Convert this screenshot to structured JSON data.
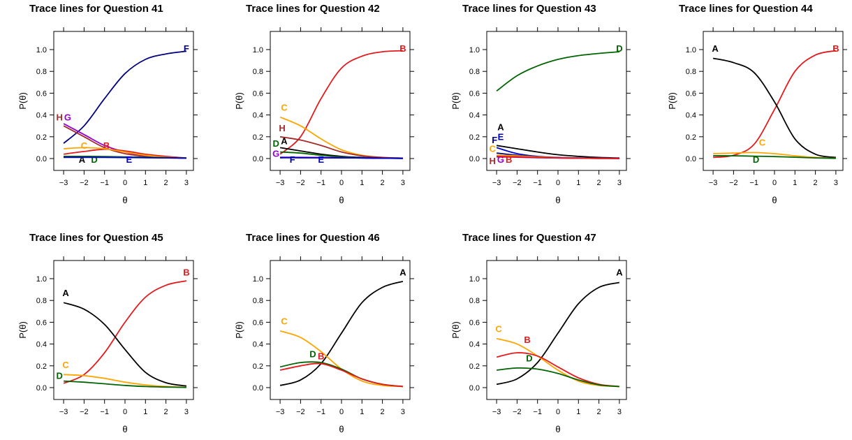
{
  "chart_data": [
    {
      "type": "line",
      "title": "Trace lines for Question 41",
      "xlabel": "θ",
      "ylabel": "P(θ)",
      "xlim": [
        -3,
        3
      ],
      "ylim": [
        0,
        1
      ],
      "xticks": [
        "−3",
        "−2",
        "−1",
        "0",
        "1",
        "2",
        "3"
      ],
      "yticks": [
        "0.0",
        "0.2",
        "0.4",
        "0.6",
        "0.8",
        "1.0"
      ],
      "x": [
        -3,
        -2,
        -1,
        0,
        1,
        2,
        3
      ],
      "series": [
        {
          "name": "F",
          "color": "#000080",
          "values": [
            0.14,
            0.3,
            0.55,
            0.78,
            0.91,
            0.96,
            0.985
          ],
          "label_at": [
            3,
            0.98
          ]
        },
        {
          "name": "G",
          "color": "#9400d3",
          "values": [
            0.32,
            0.22,
            0.12,
            0.06,
            0.025,
            0.01,
            0.005
          ],
          "label_at": [
            -2.8,
            0.35
          ]
        },
        {
          "name": "H",
          "color": "#a52a2a",
          "values": [
            0.3,
            0.2,
            0.1,
            0.045,
            0.02,
            0.008,
            0.003
          ],
          "label_at": [
            -3.2,
            0.35
          ]
        },
        {
          "name": "B",
          "color": "#e31a1c",
          "values": [
            0.04,
            0.065,
            0.085,
            0.07,
            0.04,
            0.02,
            0.005
          ],
          "label_at": [
            -0.9,
            0.09
          ]
        },
        {
          "name": "C",
          "color": "#ffa500",
          "values": [
            0.09,
            0.1,
            0.09,
            0.06,
            0.03,
            0.012,
            0.004
          ],
          "label_at": [
            -2.0,
            0.09
          ]
        },
        {
          "name": "A",
          "color": "#000000",
          "values": [
            0.015,
            0.015,
            0.014,
            0.012,
            0.01,
            0.007,
            0.004
          ],
          "label_at": [
            -2.1,
            -0.04
          ]
        },
        {
          "name": "D",
          "color": "#006400",
          "values": [
            0.02,
            0.02,
            0.018,
            0.015,
            0.012,
            0.008,
            0.005
          ],
          "label_at": [
            -1.5,
            -0.04
          ]
        },
        {
          "name": "E",
          "color": "#0000cd",
          "values": [
            0.01,
            0.01,
            0.01,
            0.009,
            0.008,
            0.006,
            0.004
          ],
          "label_at": [
            0.2,
            -0.04
          ]
        }
      ]
    },
    {
      "type": "line",
      "title": "Trace lines for Question 42",
      "xlabel": "θ",
      "ylabel": "P(θ)",
      "xlim": [
        -3,
        3
      ],
      "ylim": [
        0,
        1
      ],
      "xticks": [
        "−3",
        "−2",
        "−1",
        "0",
        "1",
        "2",
        "3"
      ],
      "yticks": [
        "0.0",
        "0.2",
        "0.4",
        "0.6",
        "0.8",
        "1.0"
      ],
      "x": [
        -3,
        -2,
        -1,
        0,
        1,
        2,
        3
      ],
      "series": [
        {
          "name": "B",
          "color": "#e31a1c",
          "values": [
            0.04,
            0.2,
            0.55,
            0.83,
            0.94,
            0.98,
            0.99
          ],
          "label_at": [
            3,
            0.98
          ]
        },
        {
          "name": "C",
          "color": "#ffa500",
          "values": [
            0.38,
            0.3,
            0.18,
            0.08,
            0.03,
            0.01,
            0.004
          ],
          "label_at": [
            -2.8,
            0.44
          ]
        },
        {
          "name": "H",
          "color": "#a52a2a",
          "values": [
            0.2,
            0.17,
            0.12,
            0.06,
            0.025,
            0.01,
            0.004
          ],
          "label_at": [
            -2.9,
            0.25
          ]
        },
        {
          "name": "A",
          "color": "#000000",
          "values": [
            0.1,
            0.07,
            0.04,
            0.02,
            0.01,
            0.004,
            0.002
          ],
          "label_at": [
            -2.8,
            0.13
          ]
        },
        {
          "name": "D",
          "color": "#006400",
          "values": [
            0.06,
            0.05,
            0.03,
            0.015,
            0.008,
            0.003,
            0.002
          ],
          "label_at": [
            -3.2,
            0.11
          ]
        },
        {
          "name": "G",
          "color": "#9400d3",
          "values": [
            0.012,
            0.011,
            0.01,
            0.008,
            0.006,
            0.004,
            0.002
          ],
          "label_at": [
            -3.2,
            0.015
          ]
        },
        {
          "name": "F",
          "color": "#000080",
          "values": [
            0.008,
            0.008,
            0.007,
            0.006,
            0.005,
            0.003,
            0.002
          ],
          "label_at": [
            -2.4,
            -0.04
          ]
        },
        {
          "name": "E",
          "color": "#0000cd",
          "values": [
            0.008,
            0.008,
            0.007,
            0.006,
            0.005,
            0.003,
            0.002
          ],
          "label_at": [
            -1.0,
            -0.04
          ]
        }
      ]
    },
    {
      "type": "line",
      "title": "Trace lines for Question 43",
      "xlabel": "θ",
      "ylabel": "P(θ)",
      "xlim": [
        -3,
        3
      ],
      "ylim": [
        0,
        1
      ],
      "xticks": [
        "−3",
        "−2",
        "−1",
        "0",
        "1",
        "2",
        "3"
      ],
      "yticks": [
        "0.0",
        "0.2",
        "0.4",
        "0.6",
        "0.8",
        "1.0"
      ],
      "x": [
        -3,
        -2,
        -1,
        0,
        1,
        2,
        3
      ],
      "series": [
        {
          "name": "D",
          "color": "#006400",
          "values": [
            0.62,
            0.76,
            0.85,
            0.91,
            0.945,
            0.965,
            0.98
          ],
          "label_at": [
            3,
            0.98
          ]
        },
        {
          "name": "A",
          "color": "#000000",
          "values": [
            0.12,
            0.09,
            0.06,
            0.035,
            0.02,
            0.01,
            0.005
          ],
          "label_at": [
            -2.8,
            0.26
          ]
        },
        {
          "name": "E",
          "color": "#0000cd",
          "values": [
            0.1,
            0.045,
            0.02,
            0.01,
            0.005,
            0.003,
            0.002
          ],
          "label_at": [
            -2.8,
            0.17
          ]
        },
        {
          "name": "F",
          "color": "#000080",
          "values": [
            0.05,
            0.03,
            0.015,
            0.008,
            0.004,
            0.002,
            0.001
          ],
          "label_at": [
            -3.1,
            0.14
          ]
        },
        {
          "name": "C",
          "color": "#ffa500",
          "values": [
            0.03,
            0.025,
            0.015,
            0.008,
            0.004,
            0.002,
            0.001
          ],
          "label_at": [
            -3.2,
            0.06
          ]
        },
        {
          "name": "H",
          "color": "#a52a2a",
          "values": [
            0.02,
            0.015,
            0.01,
            0.006,
            0.003,
            0.002,
            0.001
          ],
          "label_at": [
            -3.2,
            -0.05
          ]
        },
        {
          "name": "G",
          "color": "#9400d3",
          "values": [
            0.015,
            0.012,
            0.008,
            0.005,
            0.003,
            0.002,
            0.001
          ],
          "label_at": [
            -2.8,
            -0.04
          ]
        },
        {
          "name": "B",
          "color": "#e31a1c",
          "values": [
            0.02,
            0.015,
            0.01,
            0.006,
            0.003,
            0.002,
            0.001
          ],
          "label_at": [
            -2.4,
            -0.04
          ]
        }
      ]
    },
    {
      "type": "line",
      "title": "Trace lines for Question 44",
      "xlabel": "θ",
      "ylabel": "P(θ)",
      "xlim": [
        -3,
        3
      ],
      "ylim": [
        0,
        1
      ],
      "xticks": [
        "−3",
        "−2",
        "−1",
        "0",
        "1",
        "2",
        "3"
      ],
      "yticks": [
        "0.0",
        "0.2",
        "0.4",
        "0.6",
        "0.8",
        "1.0"
      ],
      "x": [
        -3,
        -2,
        -1,
        0,
        1,
        2,
        3
      ],
      "series": [
        {
          "name": "B",
          "color": "#e31a1c",
          "values": [
            0.01,
            0.03,
            0.13,
            0.45,
            0.8,
            0.95,
            0.99
          ],
          "label_at": [
            3,
            0.98
          ]
        },
        {
          "name": "A",
          "color": "#000000",
          "values": [
            0.92,
            0.88,
            0.79,
            0.52,
            0.18,
            0.04,
            0.01
          ],
          "label_at": [
            -2.9,
            0.98
          ]
        },
        {
          "name": "C",
          "color": "#ffa500",
          "values": [
            0.045,
            0.05,
            0.055,
            0.045,
            0.025,
            0.01,
            0.003
          ],
          "label_at": [
            -0.6,
            0.12
          ]
        },
        {
          "name": "D",
          "color": "#006400",
          "values": [
            0.025,
            0.025,
            0.022,
            0.018,
            0.012,
            0.006,
            0.002
          ],
          "label_at": [
            -0.9,
            -0.04
          ]
        }
      ]
    },
    {
      "type": "line",
      "title": "Trace lines for Question 45",
      "xlabel": "θ",
      "ylabel": "P(θ)",
      "xlim": [
        -3,
        3
      ],
      "ylim": [
        0,
        1
      ],
      "xticks": [
        "−3",
        "−2",
        "−1",
        "0",
        "1",
        "2",
        "3"
      ],
      "yticks": [
        "0.0",
        "0.2",
        "0.4",
        "0.6",
        "0.8",
        "1.0"
      ],
      "x": [
        -3,
        -2,
        -1,
        0,
        1,
        2,
        3
      ],
      "series": [
        {
          "name": "B",
          "color": "#e31a1c",
          "values": [
            0.04,
            0.12,
            0.32,
            0.6,
            0.83,
            0.94,
            0.98
          ],
          "label_at": [
            3,
            1.03
          ]
        },
        {
          "name": "A",
          "color": "#000000",
          "values": [
            0.78,
            0.72,
            0.58,
            0.35,
            0.14,
            0.045,
            0.015
          ],
          "label_at": [
            -2.9,
            0.84
          ]
        },
        {
          "name": "C",
          "color": "#ffa500",
          "values": [
            0.12,
            0.11,
            0.085,
            0.05,
            0.025,
            0.01,
            0.004
          ],
          "label_at": [
            -2.9,
            0.18
          ]
        },
        {
          "name": "D",
          "color": "#006400",
          "values": [
            0.06,
            0.05,
            0.035,
            0.02,
            0.01,
            0.005,
            0.002
          ],
          "label_at": [
            -3.2,
            0.08
          ]
        }
      ]
    },
    {
      "type": "line",
      "title": "Trace lines for Question 46",
      "xlabel": "θ",
      "ylabel": "P(θ)",
      "xlim": [
        -3,
        3
      ],
      "ylim": [
        0,
        1
      ],
      "xticks": [
        "−3",
        "−2",
        "−1",
        "0",
        "1",
        "2",
        "3"
      ],
      "yticks": [
        "0.0",
        "0.2",
        "0.4",
        "0.6",
        "0.8",
        "1.0"
      ],
      "x": [
        -3,
        -2,
        -1,
        0,
        1,
        2,
        3
      ],
      "series": [
        {
          "name": "A",
          "color": "#000000",
          "values": [
            0.02,
            0.07,
            0.22,
            0.5,
            0.78,
            0.92,
            0.975
          ],
          "label_at": [
            3,
            1.03
          ]
        },
        {
          "name": "C",
          "color": "#ffa500",
          "values": [
            0.52,
            0.46,
            0.33,
            0.17,
            0.06,
            0.02,
            0.01
          ],
          "label_at": [
            -2.8,
            0.58
          ]
        },
        {
          "name": "D",
          "color": "#006400",
          "values": [
            0.19,
            0.23,
            0.23,
            0.17,
            0.08,
            0.03,
            0.01
          ],
          "label_at": [
            -1.4,
            0.28
          ]
        },
        {
          "name": "B",
          "color": "#e31a1c",
          "values": [
            0.16,
            0.2,
            0.22,
            0.16,
            0.08,
            0.03,
            0.01
          ],
          "label_at": [
            -1.0,
            0.26
          ]
        }
      ]
    },
    {
      "type": "line",
      "title": "Trace lines for Question 47",
      "xlabel": "θ",
      "ylabel": "P(θ)",
      "xlim": [
        -3,
        3
      ],
      "ylim": [
        0,
        1
      ],
      "xticks": [
        "−3",
        "−2",
        "−1",
        "0",
        "1",
        "2",
        "3"
      ],
      "yticks": [
        "0.0",
        "0.2",
        "0.4",
        "0.6",
        "0.8",
        "1.0"
      ],
      "x": [
        -3,
        -2,
        -1,
        0,
        1,
        2,
        3
      ],
      "series": [
        {
          "name": "A",
          "color": "#000000",
          "values": [
            0.03,
            0.08,
            0.23,
            0.5,
            0.77,
            0.92,
            0.965
          ],
          "label_at": [
            3,
            1.03
          ]
        },
        {
          "name": "C",
          "color": "#ffa500",
          "values": [
            0.45,
            0.4,
            0.29,
            0.16,
            0.06,
            0.02,
            0.01
          ],
          "label_at": [
            -2.9,
            0.51
          ]
        },
        {
          "name": "B",
          "color": "#e31a1c",
          "values": [
            0.28,
            0.32,
            0.29,
            0.19,
            0.09,
            0.03,
            0.01
          ],
          "label_at": [
            -1.5,
            0.41
          ]
        },
        {
          "name": "D",
          "color": "#006400",
          "values": [
            0.16,
            0.18,
            0.17,
            0.13,
            0.07,
            0.025,
            0.01
          ],
          "label_at": [
            -1.4,
            0.24
          ]
        }
      ]
    }
  ]
}
